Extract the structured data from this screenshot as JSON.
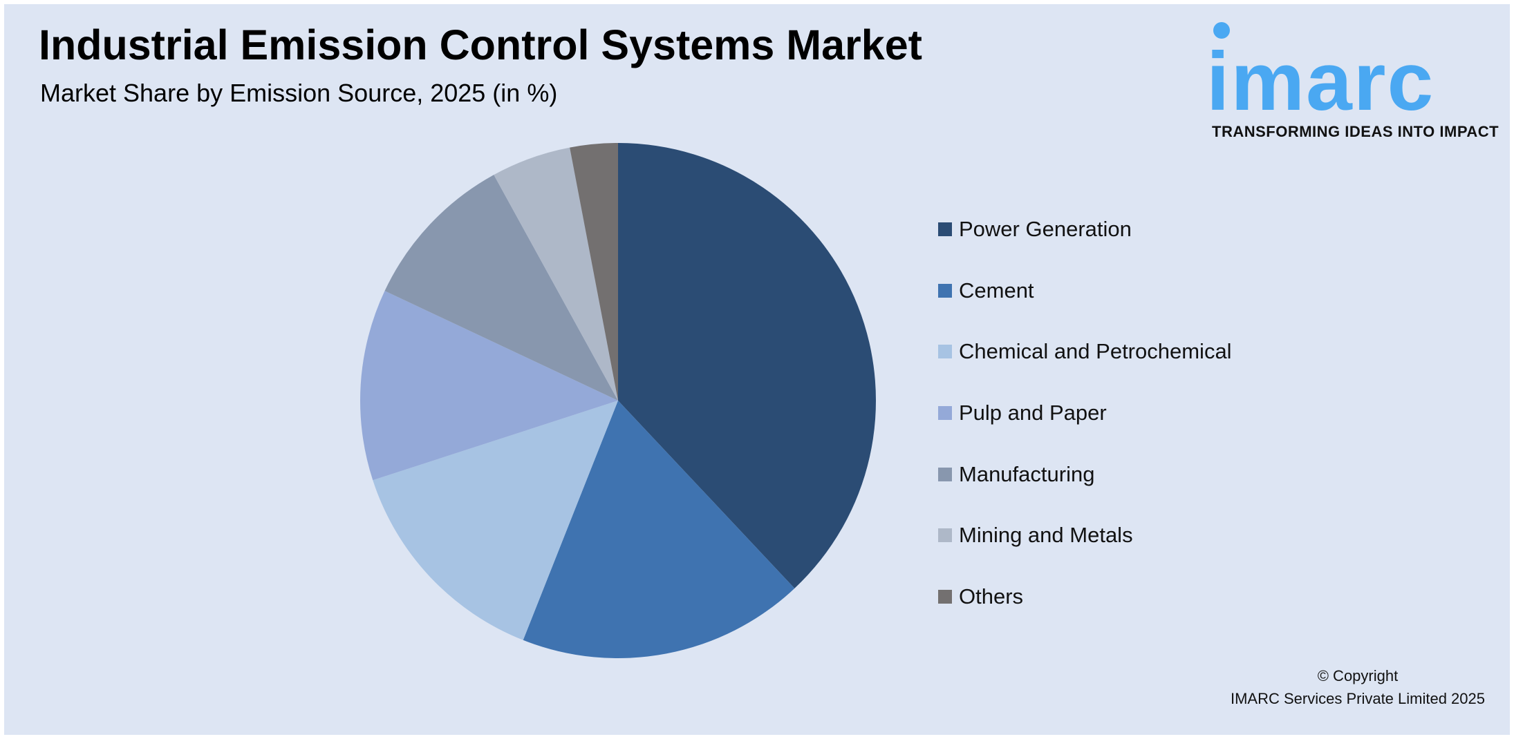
{
  "title": "Industrial Emission Control Systems Market",
  "subtitle": "Market Share by Emission Source, 2025 (in %)",
  "logo": {
    "word": "imarc",
    "tagline": "TRANSFORMING IDEAS INTO IMPACT",
    "color": "#4aa8f2"
  },
  "copyright": {
    "line1": "© Copyright",
    "line2": "IMARC Services Private Limited 2025"
  },
  "chart_data": {
    "type": "pie",
    "title": "Industrial Emission Control Systems Market",
    "subtitle": "Market Share by Emission Source, 2025 (in %)",
    "legend_placement": "right",
    "start_angle": "top, clockwise",
    "categories": [
      "Power Generation",
      "Cement",
      "Chemical and Petrochemical",
      "Pulp and Paper",
      "Manufacturing",
      "Mining and Metals",
      "Others"
    ],
    "values": [
      38,
      18,
      14,
      12,
      10,
      5,
      3
    ],
    "colors": [
      "#2b4c74",
      "#3f73b0",
      "#a7c3e3",
      "#94a9d8",
      "#8897ae",
      "#aeb8c8",
      "#737070"
    ]
  }
}
